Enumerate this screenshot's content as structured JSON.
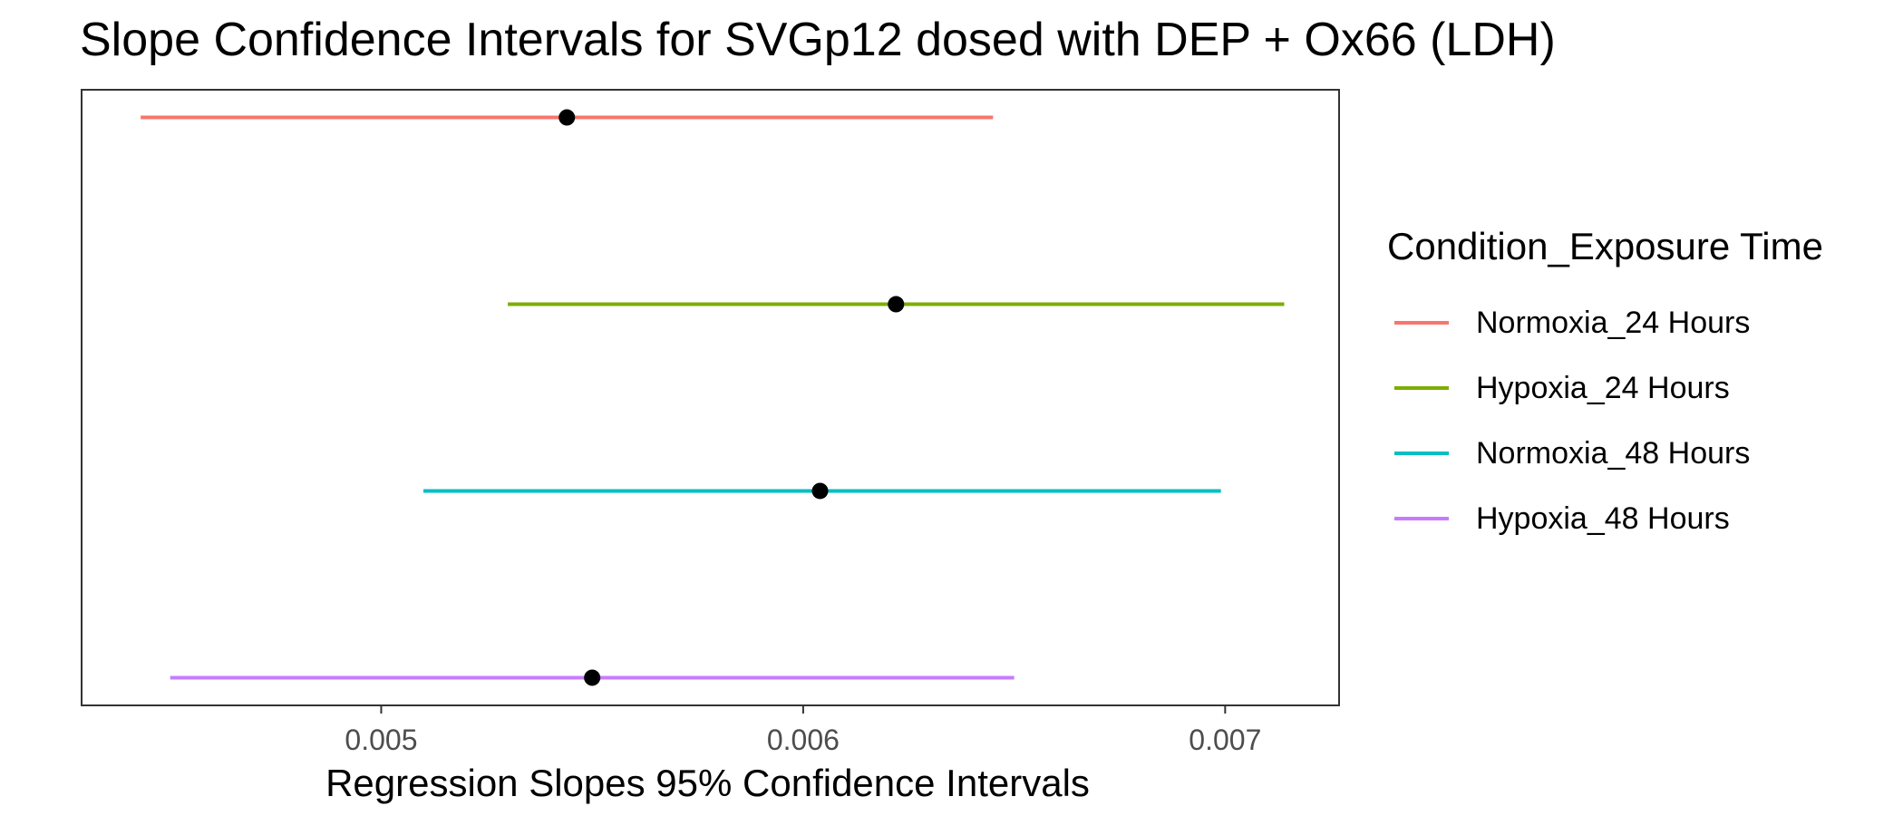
{
  "chart_data": {
    "type": "errorbar",
    "title": "Slope Confidence Intervals for SVGp12 dosed with DEP + Ox66 (LDH)",
    "xlabel": "Regression Slopes 95% Confidence Intervals",
    "ylabel": "",
    "xlim": [
      0.00429,
      0.00727
    ],
    "x_ticks": [
      {
        "value": 0.005,
        "label": "0.005"
      },
      {
        "value": 0.006,
        "label": "0.006"
      },
      {
        "value": 0.007,
        "label": "0.007"
      }
    ],
    "grid": false,
    "legend_title": "Condition_Exposure Time",
    "legend_position": "right",
    "series": [
      {
        "name": "Normoxia_24 Hours",
        "color": "#F8766D",
        "estimate": 0.00544,
        "lower": 0.00443,
        "upper": 0.00645
      },
      {
        "name": "Hypoxia_24 Hours",
        "color": "#7CAE00",
        "estimate": 0.00622,
        "lower": 0.0053,
        "upper": 0.00714
      },
      {
        "name": "Normoxia_48 Hours",
        "color": "#00BFC4",
        "estimate": 0.00604,
        "lower": 0.0051,
        "upper": 0.00699
      },
      {
        "name": "Hypoxia_48 Hours",
        "color": "#C77CFF",
        "estimate": 0.0055,
        "lower": 0.0045,
        "upper": 0.0065
      }
    ],
    "point_color": "#000000"
  }
}
